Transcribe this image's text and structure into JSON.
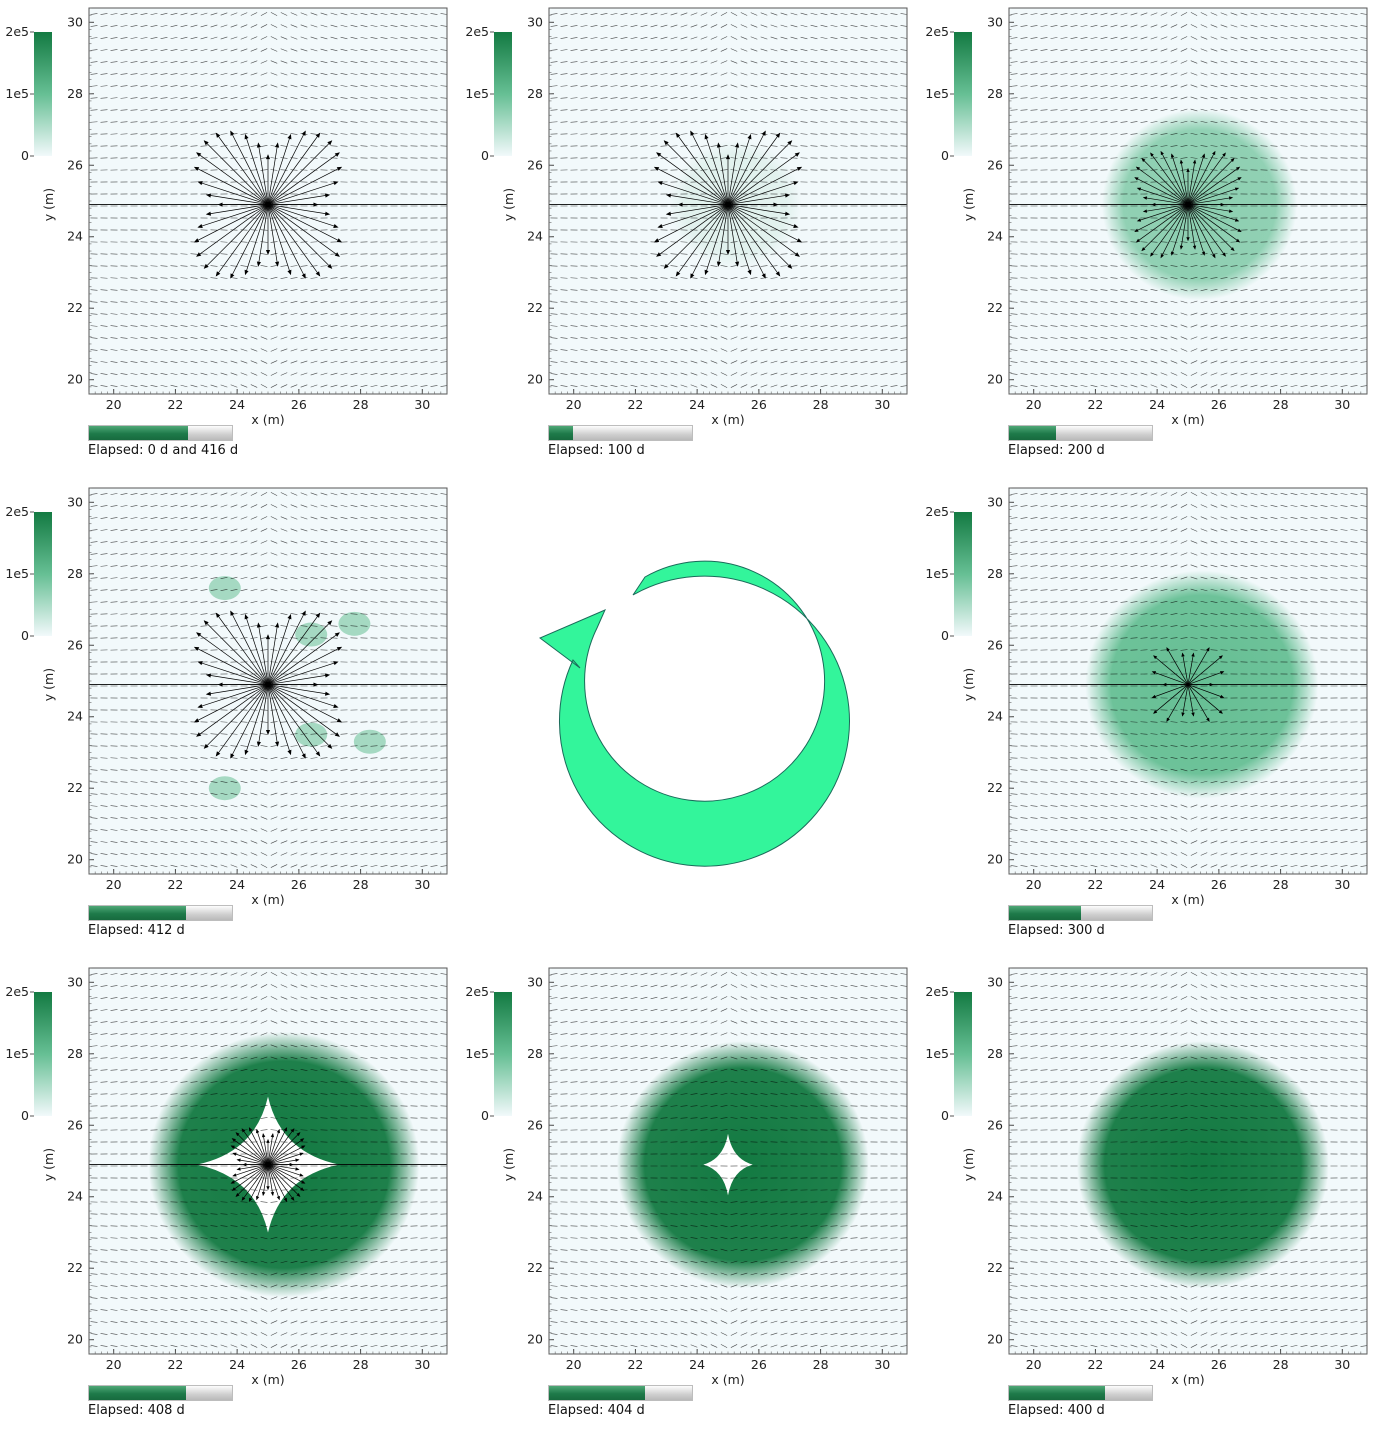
{
  "colors": {
    "colormap_low": "#f2f9fb",
    "colormap_mid": "#66bf94",
    "colormap_high": "#137a42",
    "cycle_arrow_fill": "#33f59b",
    "cycle_arrow_stroke": "#1a6b5a",
    "vector_color": "#000000"
  },
  "cycle_icon": "counterclockwise-cycle-arrow-icon",
  "chart_data": [
    {
      "type": "heatmap",
      "elapsed": "Elapsed: 0 d and 416 d",
      "progress": 0.69,
      "concentration_level": 0.0,
      "concentration_radius_m": 0,
      "hole": null,
      "arrow_style": "strong",
      "xlabel": "x (m)",
      "ylabel": "y (m)",
      "xlim": [
        19.2,
        30.8
      ],
      "ylim": [
        19.6,
        30.4
      ],
      "xticks": [
        20,
        22,
        24,
        26,
        28,
        30
      ],
      "yticks": [
        20,
        22,
        24,
        26,
        28,
        30
      ],
      "colorbar": {
        "ticks": [
          "2e5",
          "1e5",
          "0"
        ],
        "range": [
          0,
          200000
        ]
      },
      "source_location": [
        25,
        24.9
      ]
    },
    {
      "type": "heatmap",
      "elapsed": "Elapsed: 100 d",
      "progress": 0.17,
      "concentration_level": 0.12,
      "concentration_radius_m": 2.1,
      "hole": null,
      "arrow_style": "strong",
      "xlabel": "x (m)",
      "ylabel": "y (m)",
      "xlim": [
        19.2,
        30.8
      ],
      "ylim": [
        19.6,
        30.4
      ],
      "xticks": [
        20,
        22,
        24,
        26,
        28,
        30
      ],
      "yticks": [
        20,
        22,
        24,
        26,
        28,
        30
      ],
      "colorbar": {
        "ticks": [
          "2e5",
          "1e5",
          "0"
        ],
        "range": [
          0,
          200000
        ]
      },
      "source_location": [
        25,
        24.9
      ]
    },
    {
      "type": "heatmap",
      "elapsed": "Elapsed: 200 d",
      "progress": 0.33,
      "concentration_level": 0.38,
      "concentration_radius_m": 3.1,
      "hole": null,
      "arrow_style": "medium",
      "xlabel": "x (m)",
      "ylabel": "y (m)",
      "xlim": [
        19.2,
        30.8
      ],
      "ylim": [
        19.6,
        30.4
      ],
      "xticks": [
        20,
        22,
        24,
        26,
        28,
        30
      ],
      "yticks": [
        20,
        22,
        24,
        26,
        28,
        30
      ],
      "colorbar": {
        "ticks": [
          "2e5",
          "1e5",
          "0"
        ],
        "range": [
          0,
          200000
        ]
      },
      "source_location": [
        25,
        24.9
      ]
    },
    {
      "type": "heatmap",
      "elapsed": "Elapsed: 412 d",
      "progress": 0.68,
      "concentration_level": 0.15,
      "concentration_radius_m": 0,
      "hole": null,
      "patches": [
        [
          26.4,
          26.3
        ],
        [
          26.4,
          23.5
        ],
        [
          27.8,
          26.6
        ],
        [
          28.3,
          23.3
        ],
        [
          23.6,
          27.6
        ],
        [
          23.6,
          22.0
        ]
      ],
      "arrow_style": "strong",
      "xlabel": "x (m)",
      "ylabel": "y (m)",
      "xlim": [
        19.2,
        30.8
      ],
      "ylim": [
        19.6,
        30.4
      ],
      "xticks": [
        20,
        22,
        24,
        26,
        28,
        30
      ],
      "yticks": [
        20,
        22,
        24,
        26,
        28,
        30
      ],
      "colorbar": {
        "ticks": [
          "2e5",
          "1e5",
          "0"
        ],
        "range": [
          0,
          200000
        ]
      },
      "source_location": [
        25,
        24.9
      ]
    },
    {
      "type": "heatmap",
      "elapsed": "Elapsed: 300 d",
      "progress": 0.5,
      "concentration_level": 0.65,
      "concentration_radius_m": 3.7,
      "hole": null,
      "arrow_style": "weak",
      "xlabel": "x (m)",
      "ylabel": "y (m)",
      "xlim": [
        19.2,
        30.8
      ],
      "ylim": [
        19.6,
        30.4
      ],
      "xticks": [
        20,
        22,
        24,
        26,
        28,
        30
      ],
      "yticks": [
        20,
        22,
        24,
        26,
        28,
        30
      ],
      "colorbar": {
        "ticks": [
          "2e5",
          "1e5",
          "0"
        ],
        "range": [
          0,
          200000
        ]
      },
      "source_location": [
        25,
        24.9
      ]
    },
    {
      "type": "heatmap",
      "elapsed": "Elapsed: 408 d",
      "progress": 0.68,
      "concentration_level": 0.9,
      "concentration_radius_m": 4.3,
      "hole": {
        "rx": 2.3,
        "ry": 2.2
      },
      "arrow_style": "inner",
      "xlabel": "x (m)",
      "ylabel": "y (m)",
      "xlim": [
        19.2,
        30.8
      ],
      "ylim": [
        19.6,
        30.4
      ],
      "xticks": [
        20,
        22,
        24,
        26,
        28,
        30
      ],
      "yticks": [
        20,
        22,
        24,
        26,
        28,
        30
      ],
      "colorbar": {
        "ticks": [
          "2e5",
          "1e5",
          "0"
        ],
        "range": [
          0,
          200000
        ]
      },
      "source_location": [
        25,
        24.9
      ]
    },
    {
      "type": "heatmap",
      "elapsed": "Elapsed: 404 d",
      "progress": 0.67,
      "concentration_level": 0.95,
      "concentration_radius_m": 4.0,
      "hole": {
        "rx": 0.8,
        "ry": 1.0
      },
      "arrow_style": "none",
      "xlabel": "x (m)",
      "ylabel": "y (m)",
      "xlim": [
        19.2,
        30.8
      ],
      "ylim": [
        19.6,
        30.4
      ],
      "xticks": [
        20,
        22,
        24,
        26,
        28,
        30
      ],
      "yticks": [
        20,
        22,
        24,
        26,
        28,
        30
      ],
      "colorbar": {
        "ticks": [
          "2e5",
          "1e5",
          "0"
        ],
        "range": [
          0,
          200000
        ]
      },
      "source_location": [
        25,
        24.9
      ]
    },
    {
      "type": "heatmap",
      "elapsed": "Elapsed: 400 d",
      "progress": 0.67,
      "concentration_level": 1.0,
      "concentration_radius_m": 4.0,
      "hole": null,
      "arrow_style": "none",
      "xlabel": "x (m)",
      "ylabel": "y (m)",
      "xlim": [
        19.2,
        30.8
      ],
      "ylim": [
        19.6,
        30.4
      ],
      "xticks": [
        20,
        22,
        24,
        26,
        28,
        30
      ],
      "yticks": [
        20,
        22,
        24,
        26,
        28,
        30
      ],
      "colorbar": {
        "ticks": [
          "2e5",
          "1e5",
          "0"
        ],
        "range": [
          0,
          200000
        ]
      },
      "source_location": [
        25,
        24.9
      ]
    }
  ]
}
